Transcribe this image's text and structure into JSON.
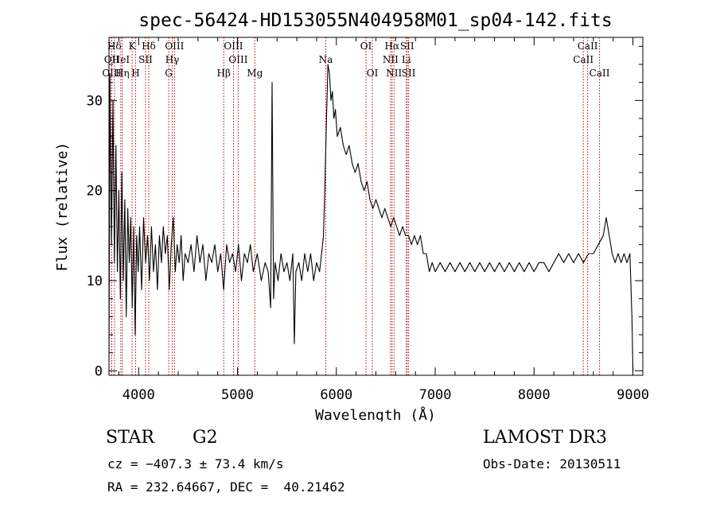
{
  "chart_data": {
    "type": "line",
    "title": "spec-56424-HD153055N404958M01_sp04-142.fits",
    "xlabel": "Wavelength (Å)",
    "ylabel": "Flux (relative)",
    "xlim": [
      3700,
      9100
    ],
    "ylim": [
      -0.5,
      37
    ],
    "x_ticks": [
      4000,
      5000,
      6000,
      7000,
      8000,
      9000
    ],
    "y_ticks": [
      0,
      10,
      20,
      30
    ],
    "series": [
      {
        "name": "flux",
        "points": [
          [
            3700,
            1
          ],
          [
            3710,
            33
          ],
          [
            3725,
            14
          ],
          [
            3740,
            30
          ],
          [
            3755,
            12
          ],
          [
            3770,
            25
          ],
          [
            3785,
            11
          ],
          [
            3800,
            20
          ],
          [
            3815,
            8
          ],
          [
            3830,
            22
          ],
          [
            3845,
            10
          ],
          [
            3860,
            19
          ],
          [
            3875,
            6
          ],
          [
            3890,
            18
          ],
          [
            3905,
            12
          ],
          [
            3920,
            17
          ],
          [
            3935,
            7
          ],
          [
            3950,
            16
          ],
          [
            3965,
            4
          ],
          [
            3980,
            15
          ],
          [
            3995,
            11
          ],
          [
            4010,
            16
          ],
          [
            4030,
            9
          ],
          [
            4050,
            17
          ],
          [
            4070,
            12
          ],
          [
            4090,
            15
          ],
          [
            4110,
            10
          ],
          [
            4130,
            16
          ],
          [
            4150,
            11
          ],
          [
            4170,
            14
          ],
          [
            4190,
            9
          ],
          [
            4210,
            15
          ],
          [
            4230,
            12
          ],
          [
            4250,
            16
          ],
          [
            4270,
            13
          ],
          [
            4290,
            15
          ],
          [
            4310,
            9
          ],
          [
            4330,
            14
          ],
          [
            4350,
            17
          ],
          [
            4370,
            11
          ],
          [
            4390,
            14
          ],
          [
            4410,
            12
          ],
          [
            4430,
            15
          ],
          [
            4450,
            10
          ],
          [
            4470,
            13
          ],
          [
            4500,
            12
          ],
          [
            4530,
            14
          ],
          [
            4560,
            11
          ],
          [
            4590,
            15
          ],
          [
            4620,
            12
          ],
          [
            4650,
            14
          ],
          [
            4680,
            10
          ],
          [
            4710,
            13
          ],
          [
            4740,
            12
          ],
          [
            4770,
            14
          ],
          [
            4800,
            11
          ],
          [
            4830,
            13
          ],
          [
            4860,
            9
          ],
          [
            4890,
            14
          ],
          [
            4920,
            12
          ],
          [
            4950,
            13
          ],
          [
            4980,
            11
          ],
          [
            5010,
            14
          ],
          [
            5040,
            10
          ],
          [
            5070,
            13
          ],
          [
            5100,
            12
          ],
          [
            5130,
            14
          ],
          [
            5160,
            11
          ],
          [
            5200,
            13
          ],
          [
            5240,
            10
          ],
          [
            5280,
            12
          ],
          [
            5310,
            11
          ],
          [
            5335,
            7
          ],
          [
            5350,
            32
          ],
          [
            5365,
            8
          ],
          [
            5380,
            12
          ],
          [
            5410,
            10
          ],
          [
            5440,
            13
          ],
          [
            5470,
            11
          ],
          [
            5500,
            12
          ],
          [
            5530,
            10
          ],
          [
            5560,
            13
          ],
          [
            5575,
            3
          ],
          [
            5590,
            11
          ],
          [
            5620,
            12
          ],
          [
            5650,
            10
          ],
          [
            5680,
            13
          ],
          [
            5710,
            11
          ],
          [
            5740,
            13
          ],
          [
            5770,
            10
          ],
          [
            5800,
            12
          ],
          [
            5830,
            11
          ],
          [
            5850,
            13
          ],
          [
            5870,
            15
          ],
          [
            5885,
            21
          ],
          [
            5900,
            28
          ],
          [
            5915,
            34
          ],
          [
            5930,
            33
          ],
          [
            5945,
            30
          ],
          [
            5960,
            31
          ],
          [
            5975,
            28
          ],
          [
            5990,
            29
          ],
          [
            6010,
            26
          ],
          [
            6040,
            27
          ],
          [
            6070,
            25
          ],
          [
            6100,
            24
          ],
          [
            6130,
            25
          ],
          [
            6160,
            23
          ],
          [
            6190,
            22
          ],
          [
            6220,
            23
          ],
          [
            6250,
            21
          ],
          [
            6280,
            20
          ],
          [
            6310,
            21
          ],
          [
            6340,
            19
          ],
          [
            6370,
            18
          ],
          [
            6400,
            19
          ],
          [
            6430,
            18
          ],
          [
            6460,
            17
          ],
          [
            6490,
            18
          ],
          [
            6520,
            17
          ],
          [
            6550,
            16
          ],
          [
            6580,
            17
          ],
          [
            6610,
            16
          ],
          [
            6640,
            15
          ],
          [
            6670,
            16
          ],
          [
            6700,
            15
          ],
          [
            6730,
            15
          ],
          [
            6760,
            14
          ],
          [
            6790,
            15
          ],
          [
            6820,
            14
          ],
          [
            6850,
            15
          ],
          [
            6880,
            13
          ],
          [
            6910,
            13
          ],
          [
            6940,
            11
          ],
          [
            6970,
            12
          ],
          [
            7000,
            11
          ],
          [
            7050,
            12
          ],
          [
            7100,
            11
          ],
          [
            7150,
            12
          ],
          [
            7200,
            11
          ],
          [
            7250,
            12
          ],
          [
            7300,
            11
          ],
          [
            7350,
            12
          ],
          [
            7400,
            11
          ],
          [
            7450,
            12
          ],
          [
            7500,
            11
          ],
          [
            7550,
            12
          ],
          [
            7600,
            11
          ],
          [
            7650,
            12
          ],
          [
            7700,
            11
          ],
          [
            7750,
            12
          ],
          [
            7800,
            11
          ],
          [
            7850,
            12
          ],
          [
            7900,
            11
          ],
          [
            7950,
            12
          ],
          [
            8000,
            11
          ],
          [
            8050,
            12
          ],
          [
            8100,
            12
          ],
          [
            8150,
            11
          ],
          [
            8200,
            12
          ],
          [
            8250,
            13
          ],
          [
            8300,
            12
          ],
          [
            8350,
            13
          ],
          [
            8400,
            12
          ],
          [
            8450,
            13
          ],
          [
            8500,
            12
          ],
          [
            8550,
            13
          ],
          [
            8600,
            13
          ],
          [
            8650,
            14
          ],
          [
            8700,
            15
          ],
          [
            8730,
            17
          ],
          [
            8760,
            15
          ],
          [
            8790,
            13
          ],
          [
            8820,
            12
          ],
          [
            8850,
            13
          ],
          [
            8880,
            12
          ],
          [
            8910,
            13
          ],
          [
            8940,
            12
          ],
          [
            8970,
            13
          ],
          [
            8990,
            6
          ],
          [
            9000,
            0
          ]
        ]
      }
    ],
    "lines": [
      {
        "name": "OII",
        "wavelength": 3727,
        "row": 1
      },
      {
        "name": "OIII",
        "wavelength": 3727,
        "row": 2
      },
      {
        "name": "Hδ",
        "wavelength": 3755,
        "row": 0
      },
      {
        "name": "HeI",
        "wavelength": 3820,
        "row": 1
      },
      {
        "name": "Hη",
        "wavelength": 3835,
        "row": 2
      },
      {
        "name": "K",
        "wavelength": 3934,
        "row": 0
      },
      {
        "name": "SII",
        "wavelength": 4070,
        "row": 1
      },
      {
        "name": "H",
        "wavelength": 3969,
        "row": 2
      },
      {
        "name": "Hδ",
        "wavelength": 4102,
        "row": 0
      },
      {
        "name": "OIII",
        "wavelength": 4363,
        "row": 0
      },
      {
        "name": "Hγ",
        "wavelength": 4340,
        "row": 1
      },
      {
        "name": "G",
        "wavelength": 4304,
        "row": 2
      },
      {
        "name": "OIII",
        "wavelength": 4959,
        "row": 0
      },
      {
        "name": "OIII",
        "wavelength": 5007,
        "row": 1
      },
      {
        "name": "Hβ",
        "wavelength": 4861,
        "row": 2
      },
      {
        "name": "Mg",
        "wavelength": 5175,
        "row": 2
      },
      {
        "name": "Na",
        "wavelength": 5893,
        "row": 1
      },
      {
        "name": "OI",
        "wavelength": 6300,
        "row": 0
      },
      {
        "name": "OI",
        "wavelength": 6364,
        "row": 2
      },
      {
        "name": "Hα",
        "wavelength": 6563,
        "row": 0
      },
      {
        "name": "SII",
        "wavelength": 6716,
        "row": 0
      },
      {
        "name": "NII",
        "wavelength": 6548,
        "row": 1
      },
      {
        "name": "Li",
        "wavelength": 6708,
        "row": 1
      },
      {
        "name": "NII",
        "wavelength": 6583,
        "row": 2
      },
      {
        "name": "SII",
        "wavelength": 6731,
        "row": 2
      },
      {
        "name": "CaII",
        "wavelength": 8542,
        "row": 0
      },
      {
        "name": "CaII",
        "wavelength": 8498,
        "row": 1
      },
      {
        "name": "CaII",
        "wavelength": 8662,
        "row": 2
      }
    ]
  },
  "info": {
    "object_class": "STAR",
    "subclass": "G2",
    "survey": "LAMOST DR3",
    "cz": "cz = −407.3 ± 73.4 km/s",
    "obs_date": "Obs-Date: 20130511",
    "coords": "RA = 232.64667, DEC =  40.21462"
  },
  "colors": {
    "spectrum": "#000000",
    "line_marker": "#c00000",
    "background": "#ffffff"
  }
}
